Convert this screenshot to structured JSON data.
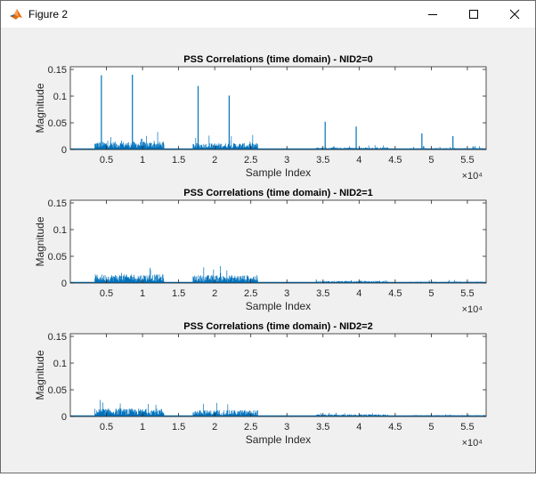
{
  "window": {
    "title": "Figure 2"
  },
  "titlebar_icons": [
    "matlab-logo-icon",
    "minimize-icon",
    "maximize-icon",
    "close-icon"
  ],
  "colors": {
    "series": "#0072bd",
    "figure_bg": "#f0f0f0",
    "axes_bg": "#ffffff"
  },
  "chart_data": [
    {
      "type": "line",
      "title": "PSS Correlations (time domain) - NID2=0",
      "xlabel": "Sample Index",
      "ylabel": "Magnitude",
      "x_exponent_label": "×10⁴",
      "xlim": [
        0,
        57600
      ],
      "ylim": [
        0,
        0.155
      ],
      "xticks": [
        5000,
        10000,
        15000,
        20000,
        25000,
        30000,
        35000,
        40000,
        45000,
        50000,
        55000
      ],
      "xtick_labels": [
        "0.5",
        "1",
        "1.5",
        "2",
        "2.5",
        "3",
        "3.5",
        "4",
        "4.5",
        "5",
        "5.5"
      ],
      "yticks": [
        0,
        0.05,
        0.1,
        0.15
      ],
      "ytick_labels": [
        "0",
        "0.05",
        "0.1",
        "0.15"
      ],
      "grid": false,
      "series": [
        {
          "bursts": [
            {
              "x_start": 3400,
              "x_end": 13000,
              "typical": 0.011,
              "max": 0.033
            },
            {
              "x_start": 17000,
              "x_end": 26000,
              "typical": 0.009,
              "max": 0.028
            },
            {
              "x_start": 34000,
              "x_end": 44000,
              "typical": 0.003,
              "max": 0.009
            },
            {
              "x_start": 47000,
              "x_end": 57300,
              "typical": 0.002,
              "max": 0.007
            }
          ],
          "peaks": [
            {
              "x": 4300,
              "y": 0.139
            },
            {
              "x": 8600,
              "y": 0.14
            },
            {
              "x": 17700,
              "y": 0.119
            },
            {
              "x": 22000,
              "y": 0.101
            },
            {
              "x": 35300,
              "y": 0.052
            },
            {
              "x": 39600,
              "y": 0.043
            },
            {
              "x": 48700,
              "y": 0.03
            },
            {
              "x": 53000,
              "y": 0.025
            }
          ]
        }
      ]
    },
    {
      "type": "line",
      "title": "PSS Correlations (time domain) - NID2=1",
      "xlabel": "Sample Index",
      "ylabel": "Magnitude",
      "x_exponent_label": "×10⁴",
      "xlim": [
        0,
        57600
      ],
      "ylim": [
        0,
        0.155
      ],
      "xticks": [
        5000,
        10000,
        15000,
        20000,
        25000,
        30000,
        35000,
        40000,
        45000,
        50000,
        55000
      ],
      "xtick_labels": [
        "0.5",
        "1",
        "1.5",
        "2",
        "2.5",
        "3",
        "3.5",
        "4",
        "4.5",
        "5",
        "5.5"
      ],
      "yticks": [
        0,
        0.05,
        0.1,
        0.15
      ],
      "ytick_labels": [
        "0",
        "0.05",
        "0.1",
        "0.15"
      ],
      "grid": false,
      "series": [
        {
          "bursts": [
            {
              "x_start": 3400,
              "x_end": 13000,
              "typical": 0.012,
              "max": 0.034
            },
            {
              "x_start": 17000,
              "x_end": 26000,
              "typical": 0.011,
              "max": 0.032
            },
            {
              "x_start": 34000,
              "x_end": 44000,
              "typical": 0.003,
              "max": 0.009
            },
            {
              "x_start": 47000,
              "x_end": 57300,
              "typical": 0.002,
              "max": 0.006
            }
          ],
          "peaks": []
        }
      ]
    },
    {
      "type": "line",
      "title": "PSS Correlations (time domain) - NID2=2",
      "xlabel": "Sample Index",
      "ylabel": "Magnitude",
      "x_exponent_label": "×10⁴",
      "xlim": [
        0,
        57600
      ],
      "ylim": [
        0,
        0.155
      ],
      "xticks": [
        5000,
        10000,
        15000,
        20000,
        25000,
        30000,
        35000,
        40000,
        45000,
        50000,
        55000
      ],
      "xtick_labels": [
        "0.5",
        "1",
        "1.5",
        "2",
        "2.5",
        "3",
        "3.5",
        "4",
        "4.5",
        "5",
        "5.5"
      ],
      "yticks": [
        0,
        0.05,
        0.1,
        0.15
      ],
      "ytick_labels": [
        "0",
        "0.05",
        "0.1",
        "0.15"
      ],
      "grid": false,
      "series": [
        {
          "bursts": [
            {
              "x_start": 3400,
              "x_end": 13000,
              "typical": 0.011,
              "max": 0.032
            },
            {
              "x_start": 17000,
              "x_end": 26000,
              "typical": 0.009,
              "max": 0.027
            },
            {
              "x_start": 34000,
              "x_end": 44000,
              "typical": 0.003,
              "max": 0.009
            },
            {
              "x_start": 47000,
              "x_end": 57300,
              "typical": 0.002,
              "max": 0.006
            }
          ],
          "peaks": []
        }
      ]
    }
  ]
}
